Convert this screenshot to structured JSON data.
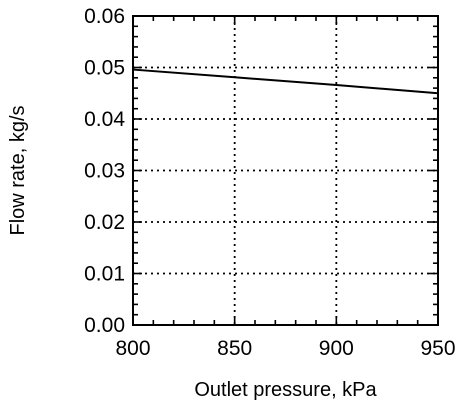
{
  "chart_data": {
    "type": "line",
    "title": "",
    "xlabel": "Outlet pressure, kPa",
    "ylabel": "Flow rate, kg/s",
    "xlim": [
      800,
      950
    ],
    "ylim": [
      0.0,
      0.06
    ],
    "x_ticks": [
      "800",
      "850",
      "900",
      "950"
    ],
    "y_ticks": [
      "0.00",
      "0.01",
      "0.02",
      "0.03",
      "0.04",
      "0.05",
      "0.06"
    ],
    "grid": true,
    "grid_style": "dotted",
    "series": [
      {
        "x": [
          800,
          850,
          900,
          950
        ],
        "values": [
          0.0496,
          0.0481,
          0.0466,
          0.045
        ]
      }
    ],
    "colors": {
      "line": "#000000",
      "grid": "#000000",
      "frame": "#000000"
    }
  }
}
